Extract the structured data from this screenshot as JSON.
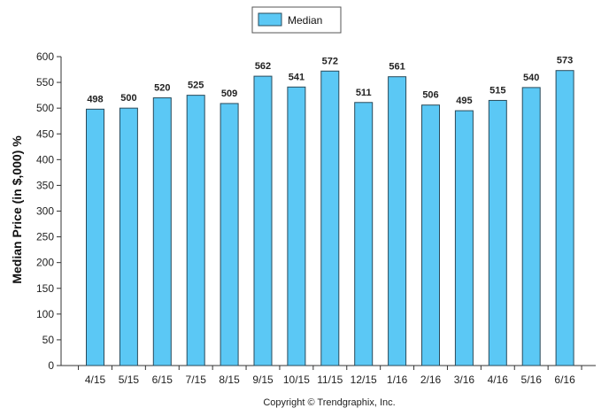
{
  "chart_data": {
    "type": "bar",
    "categories": [
      "4/15",
      "5/15",
      "6/15",
      "7/15",
      "8/15",
      "9/15",
      "10/15",
      "11/15",
      "12/15",
      "1/16",
      "2/16",
      "3/16",
      "4/16",
      "5/16",
      "6/16"
    ],
    "series": [
      {
        "name": "Median",
        "values": [
          498,
          500,
          520,
          525,
          509,
          562,
          541,
          572,
          511,
          561,
          506,
          495,
          515,
          540,
          573
        ]
      }
    ],
    "ylabel": "Median Price (in $,000) %",
    "xlabel": "",
    "ylim": [
      0,
      600
    ],
    "yticks": [
      0,
      50,
      100,
      150,
      200,
      250,
      300,
      350,
      400,
      450,
      500,
      550,
      600
    ],
    "legend": {
      "label": "Median",
      "placement": "top-center"
    },
    "grid": false,
    "colors": {
      "bar_fill": "#5bc8f5",
      "bar_stroke": "#2a4a5a"
    }
  },
  "footer": {
    "copyright": "Copyright © Trendgraphix, Inc."
  }
}
